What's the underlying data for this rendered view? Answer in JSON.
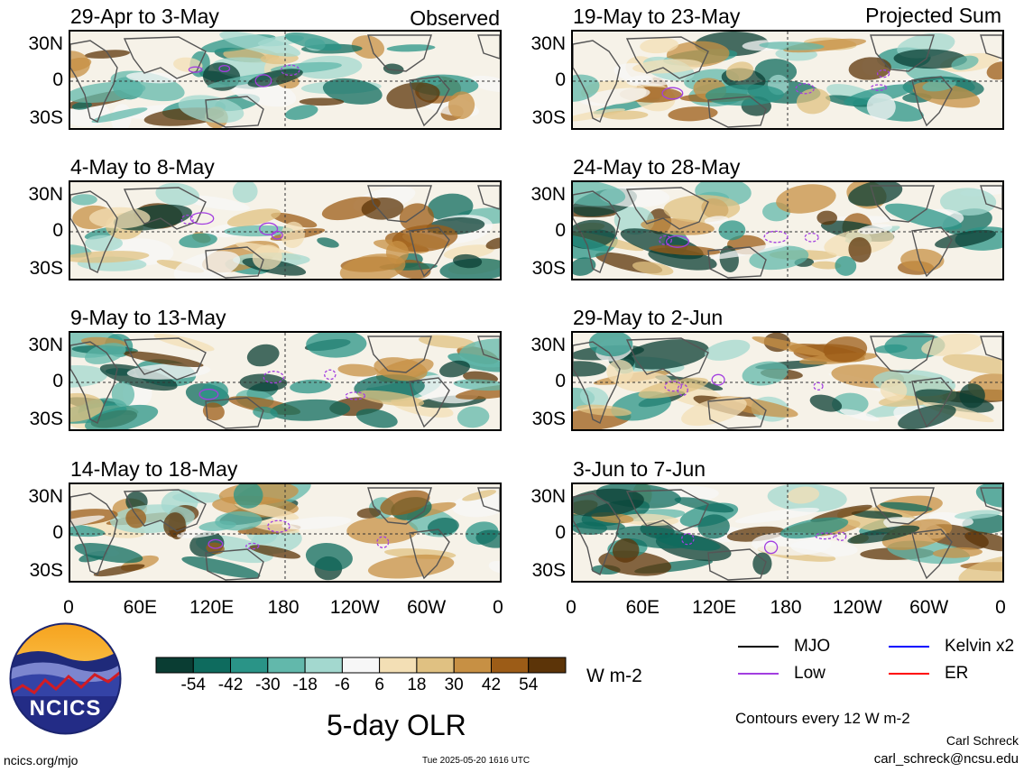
{
  "left_header": "Observed",
  "right_header": "Projected Sum",
  "panels_left": [
    {
      "title": "29-Apr to 3-May"
    },
    {
      "title": "4-May to 8-May"
    },
    {
      "title": "9-May to 13-May"
    },
    {
      "title": "14-May to 18-May"
    }
  ],
  "panels_right": [
    {
      "title": "19-May to 23-May"
    },
    {
      "title": "24-May to 28-May"
    },
    {
      "title": "29-May to 2-Jun"
    },
    {
      "title": "3-Jun to 7-Jun"
    }
  ],
  "y_ticks": [
    "30N",
    "0",
    "30S"
  ],
  "x_ticks": [
    "0",
    "60E",
    "120E",
    "180",
    "120W",
    "60W",
    "0"
  ],
  "colorbar": {
    "labels": [
      "-54",
      "-42",
      "-30",
      "-18",
      "-6",
      "6",
      "18",
      "30",
      "42",
      "54"
    ],
    "colors": [
      "#0a3d33",
      "#0e6b5e",
      "#2a9487",
      "#62b8ab",
      "#a3d8cf",
      "#f7f7f7",
      "#f3dfb5",
      "#e0c182",
      "#c79044",
      "#9c5c17",
      "#5c3408"
    ],
    "units": "W m-2"
  },
  "main_title": "5-day OLR",
  "logo_text": "NCICS",
  "legend": [
    {
      "label": "MJO",
      "color": "#000000"
    },
    {
      "label": "Kelvin x2",
      "color": "#0000ff"
    },
    {
      "label": "Low",
      "color": "#a23ee0"
    },
    {
      "label": "ER",
      "color": "#ff0000"
    }
  ],
  "contours_note": "Contours every 12 W m-2",
  "author": "Carl Schreck",
  "email": "carl_schreck@ncsu.edu",
  "site": "ncics.org/mjo",
  "timestamp": "Tue 2025-05-20 1616 UTC"
}
